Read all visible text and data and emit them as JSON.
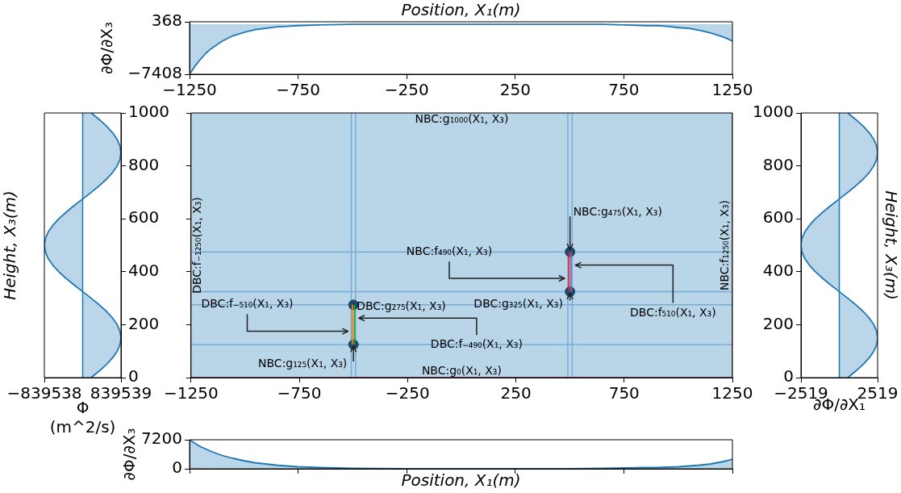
{
  "chart_data": [
    {
      "type": "area",
      "xlabel": "Position, X₁(m)",
      "ylabel": "∂Φ/∂X₃",
      "color": "#1f77b4",
      "x": [
        -1250,
        -1225,
        -1200,
        -1175,
        -1150,
        -1100,
        -1050,
        -1000,
        -950,
        -900,
        -850,
        -800,
        -750,
        -650,
        -500,
        -250,
        0,
        250,
        500,
        650,
        750,
        850,
        900,
        950,
        1000,
        1050,
        1100,
        1150,
        1200,
        1225,
        1250
      ],
      "values": [
        -7408,
        -6200,
        -5200,
        -4300,
        -3600,
        -2500,
        -1700,
        -1200,
        -800,
        -600,
        -400,
        -300,
        -200,
        -100,
        0,
        0,
        0,
        0,
        0,
        0,
        -100,
        -200,
        -200,
        -300,
        -500,
        -600,
        -900,
        -1300,
        -1800,
        -2100,
        -2500
      ],
      "xlim": [
        -1250,
        1250
      ],
      "xticks": [
        -1250,
        -750,
        -250,
        250,
        750,
        1250
      ],
      "ylim": [
        -7408,
        368
      ],
      "yticks": [
        -7408,
        368
      ]
    },
    {
      "type": "area",
      "orientation": "horizontal",
      "xlabel": "Φ (m^2/s)",
      "ylabel": "Height, X₃(m)",
      "color": "#1f77b4",
      "values": [
        187000,
        364000,
        523000,
        656000,
        756000,
        818000,
        839000,
        818000,
        756000,
        656000,
        523000,
        364000,
        187000,
        0,
        -187000,
        -364000,
        -523000,
        -656000,
        -756000,
        -818000,
        -839000,
        -818000,
        -756000,
        -656000,
        -523000,
        -364000,
        -187000,
        0,
        187000,
        364000,
        523000,
        656000,
        756000,
        818000,
        839000,
        818000,
        756000,
        656000,
        523000,
        364000,
        187000
      ],
      "x": [
        0,
        25,
        50,
        75,
        100,
        125,
        150,
        175,
        200,
        225,
        250,
        275,
        300,
        325,
        350,
        375,
        400,
        425,
        450,
        475,
        500,
        525,
        550,
        575,
        600,
        625,
        650,
        675,
        700,
        725,
        750,
        775,
        800,
        825,
        850,
        875,
        900,
        925,
        950,
        975,
        1000
      ],
      "xlim": [
        -839538,
        839539
      ],
      "xticks": [
        -839538,
        839539
      ],
      "ylim": [
        0,
        1000
      ],
      "yticks": [
        0,
        200,
        400,
        600,
        800,
        1000
      ],
      "ref_lines": [
        {
          "axis": "x",
          "value": 0,
          "color": "#1f77b4"
        }
      ]
    },
    {
      "type": "line",
      "xlim": [
        -1250,
        1250
      ],
      "xticks": [
        -1250,
        -750,
        -250,
        250,
        750,
        1250
      ],
      "ylim": [
        0,
        1000
      ],
      "yticks": [
        0,
        200,
        400,
        600,
        800,
        1000
      ],
      "tick_labels": "x",
      "bands": [
        {
          "axis": "y",
          "from": 0,
          "to": 1000,
          "color": "#b9d5e8"
        }
      ],
      "ref_lines": [
        {
          "axis": "x",
          "value": -510,
          "color": "#78acd6"
        },
        {
          "axis": "x",
          "value": -490,
          "color": "#78acd6"
        },
        {
          "axis": "x",
          "value": 490,
          "color": "#78acd6"
        },
        {
          "axis": "x",
          "value": 510,
          "color": "#78acd6"
        },
        {
          "axis": "y",
          "value": 125,
          "color": "#78acd6"
        },
        {
          "axis": "y",
          "value": 275,
          "color": "#78acd6"
        },
        {
          "axis": "y",
          "value": 325,
          "color": "#78acd6"
        },
        {
          "axis": "y",
          "value": 475,
          "color": "#78acd6"
        },
        {
          "axis": "y",
          "value": 0,
          "color": "#d62768"
        },
        {
          "axis": "x",
          "value": 1250,
          "color": "#5c2a1c"
        }
      ],
      "series": [
        {
          "color": "#ff7f0e",
          "x": [
            -505,
            -505
          ],
          "values": [
            125,
            275
          ]
        },
        {
          "color": "#2ca02c",
          "x": [
            -495,
            -495
          ],
          "values": [
            125,
            275
          ]
        },
        {
          "color": "#d62728",
          "x": [
            495,
            495
          ],
          "values": [
            325,
            475
          ]
        },
        {
          "color": "#9467bd",
          "x": [
            505,
            505
          ],
          "values": [
            325,
            475
          ]
        },
        {
          "type": "scatter",
          "marker": "circle",
          "color": "#1b4a6b",
          "x": [
            -500,
            -500,
            500,
            500
          ],
          "values": [
            125,
            275,
            325,
            475
          ]
        }
      ],
      "annotations": [
        {
          "text": "NBC:g₁₀₀₀(X₁, X₃)",
          "x": 0,
          "y": 1000
        },
        {
          "text": "DBC:f₋₁₂₅₀(X₁, X₃)",
          "x": -1250,
          "y": 500
        },
        {
          "text": "NBC:f₁₂₅₀(X₁, X₃)",
          "x": 1250,
          "y": 500
        },
        {
          "text": "DBC:f₋₅₁₀(X₁, X₃)",
          "x": -510,
          "y": 175
        },
        {
          "text": "DBC:g₂₇₅(X₁, X₃)",
          "x": -500,
          "y": 275
        },
        {
          "text": "NBC:f₄₉₀(X₁, X₃)",
          "x": 490,
          "y": 375
        },
        {
          "text": "NBC:g₄₇₅(X₁, X₃)",
          "x": 500,
          "y": 475
        },
        {
          "text": "DBC:f₅₁₀(X₁, X₃)",
          "x": 510,
          "y": 425
        },
        {
          "text": "DBC:g₃₂₅(X₁, X₃)",
          "x": 500,
          "y": 325
        },
        {
          "text": "DBC:f₋₄₉₀(X₁, X₃)",
          "x": -490,
          "y": 225
        },
        {
          "text": "NBC:g₁₂₅(X₁, X₃)",
          "x": -500,
          "y": 125
        },
        {
          "text": "NBC:g₀(X₁, X₃)",
          "x": 0,
          "y": 0
        }
      ]
    },
    {
      "type": "area",
      "orientation": "horizontal",
      "xlabel": "∂Φ/∂X₁",
      "ylabel": "Height, X₃(m)",
      "color": "#1f77b4",
      "values": [
        560,
        1090,
        1570,
        1970,
        2270,
        2460,
        2519,
        2460,
        2270,
        1970,
        1570,
        1090,
        560,
        0,
        -560,
        -1090,
        -1570,
        -1970,
        -2270,
        -2460,
        -2519,
        -2460,
        -2270,
        -1970,
        -1570,
        -1090,
        -560,
        0,
        560,
        1090,
        1570,
        1970,
        2270,
        2460,
        2519,
        2460,
        2270,
        1970,
        1570,
        1090,
        560
      ],
      "x": [
        0,
        25,
        50,
        75,
        100,
        125,
        150,
        175,
        200,
        225,
        250,
        275,
        300,
        325,
        350,
        375,
        400,
        425,
        450,
        475,
        500,
        525,
        550,
        575,
        600,
        625,
        650,
        675,
        700,
        725,
        750,
        775,
        800,
        825,
        850,
        875,
        900,
        925,
        950,
        975,
        1000
      ],
      "xlim": [
        -2519,
        2519
      ],
      "xticks": [
        -2519,
        2519
      ],
      "ylim": [
        0,
        1000
      ],
      "yticks": [
        0,
        200,
        400,
        600,
        800,
        1000
      ],
      "ref_lines": [
        {
          "axis": "x",
          "value": 0,
          "color": "#1f77b4"
        }
      ]
    },
    {
      "type": "area",
      "xlabel": "Position, X₁(m)",
      "ylabel": "∂Φ/∂X₃",
      "color": "#1f77b4",
      "tick_labels": "y",
      "x": [
        -1250,
        -1225,
        -1200,
        -1175,
        -1150,
        -1100,
        -1050,
        -1000,
        -950,
        -900,
        -850,
        -800,
        -750,
        -650,
        -500,
        -250,
        0,
        250,
        500,
        650,
        750,
        850,
        900,
        950,
        1000,
        1050,
        1100,
        1150,
        1200,
        1225,
        1250
      ],
      "values": [
        7200,
        6300,
        5500,
        4900,
        4300,
        3300,
        2600,
        2000,
        1500,
        1200,
        900,
        700,
        500,
        300,
        100,
        0,
        0,
        0,
        0,
        100,
        200,
        300,
        300,
        400,
        500,
        700,
        900,
        1200,
        1700,
        2000,
        2400
      ],
      "xlim": [
        -1250,
        1250
      ],
      "xticks": [
        -1250,
        -750,
        -250,
        250,
        750,
        1250
      ],
      "ylim": [
        0,
        7200
      ],
      "yticks": [
        0,
        7200
      ]
    }
  ]
}
